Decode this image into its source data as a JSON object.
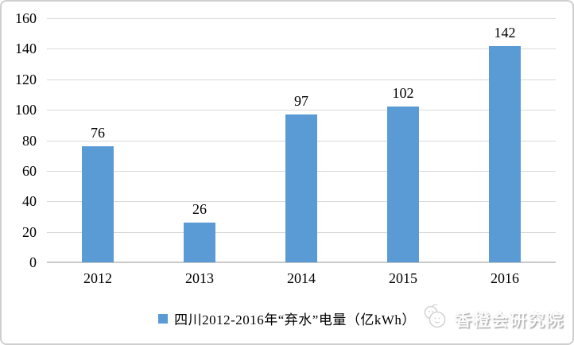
{
  "chart_data": {
    "type": "bar",
    "title": "",
    "categories": [
      "2012",
      "2013",
      "2014",
      "2015",
      "2016"
    ],
    "values": [
      76,
      26,
      97,
      102,
      142
    ],
    "data_labels": [
      "76",
      "26",
      "97",
      "102",
      "142"
    ],
    "legend": "四川2012-2016年“弃水”电量（亿kWh）",
    "legend_position": "bottom",
    "xlabel": "",
    "ylabel": "",
    "ylim": [
      0,
      160
    ],
    "ytick_step": 20,
    "yticks": [
      "0",
      "20",
      "40",
      "60",
      "80",
      "100",
      "120",
      "140",
      "160"
    ],
    "grid": true,
    "bar_color": "#5B9BD5",
    "gridline_color": "#D9D9D9",
    "axis_line_color": "#C9C9C9",
    "label_color": "#000000"
  },
  "watermark": {
    "text": "香橙会研究院"
  }
}
